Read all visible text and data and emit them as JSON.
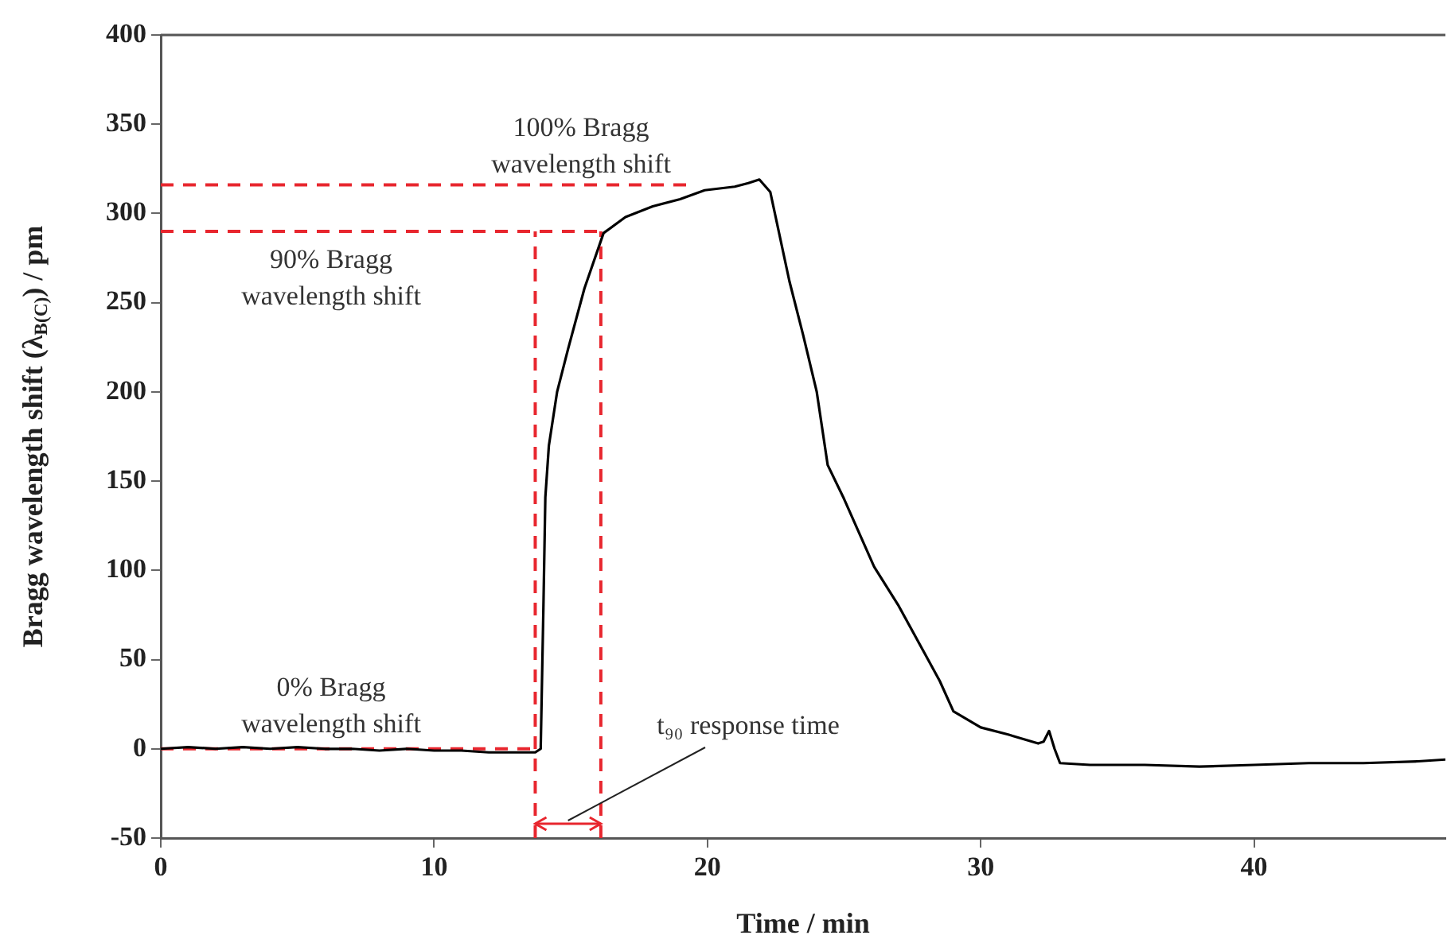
{
  "chart_data": {
    "type": "line",
    "xlabel": "Time / min",
    "ylabel": "Bragg wavelength shift (λ$_{B(C)}$) / pm",
    "xlim": [
      0,
      47
    ],
    "xticks": [
      0,
      10,
      20,
      30,
      40
    ],
    "ylim": [
      -50,
      400
    ],
    "yticks": [
      -50,
      0,
      50,
      100,
      150,
      200,
      250,
      300,
      350,
      400
    ],
    "grid": false,
    "legend": false,
    "marker": "none",
    "series": [
      {
        "color": "#000000",
        "line_style": "solid",
        "x": [
          0,
          1,
          2,
          3,
          4,
          5,
          6,
          7,
          8,
          9,
          10,
          11,
          12,
          13,
          13.7,
          13.9,
          14.0,
          14.07,
          14.2,
          14.5,
          14.9,
          15.5,
          16.2,
          17,
          18,
          19,
          19.9,
          21,
          21.5,
          21.9,
          22.3,
          23.0,
          23.5,
          24.0,
          24.4,
          25.0,
          26.1,
          27.0,
          28.0,
          28.5,
          29.0,
          30.0,
          31.0,
          32.1,
          32.3,
          32.5,
          32.7,
          32.9,
          34,
          36,
          38,
          40,
          42,
          44,
          46,
          47
        ],
        "values": [
          0,
          1,
          0,
          1,
          0,
          1,
          0,
          0,
          -1,
          0,
          -1,
          -1,
          -2,
          -2,
          -2,
          0,
          80,
          141,
          170,
          200,
          224,
          258,
          289,
          298,
          304,
          308,
          313,
          315,
          317,
          319,
          312,
          262,
          232,
          200,
          159,
          140,
          102,
          80,
          52,
          38,
          21,
          12,
          8,
          3,
          4,
          10,
          0,
          -8,
          -9,
          -9,
          -10,
          -9,
          -8,
          -8,
          -7,
          -6
        ]
      },
      {
        "color": "#e8262e",
        "line_style": "dashed",
        "x": [
          0,
          19.4
        ],
        "values": [
          316,
          316
        ]
      },
      {
        "color": "#e8262e",
        "line_style": "dashed",
        "x": [
          0,
          16.1
        ],
        "values": [
          290,
          290
        ]
      },
      {
        "color": "#e8262e",
        "line_style": "dashed",
        "x": [
          0,
          13.7
        ],
        "values": [
          0,
          0
        ]
      },
      {
        "color": "#e8262e",
        "line_style": "dashed",
        "x": [
          13.7,
          13.7
        ],
        "values": [
          -50,
          290
        ]
      },
      {
        "color": "#e8262e",
        "line_style": "dashed",
        "x": [
          16.1,
          16.1
        ],
        "values": [
          -50,
          290
        ]
      }
    ],
    "annotations": [
      "100% Bragg\nwavelength shift",
      "90% Bragg\nwavelength shift",
      "0% Bragg\nwavelength shift",
      "t₉₀ response time"
    ]
  }
}
